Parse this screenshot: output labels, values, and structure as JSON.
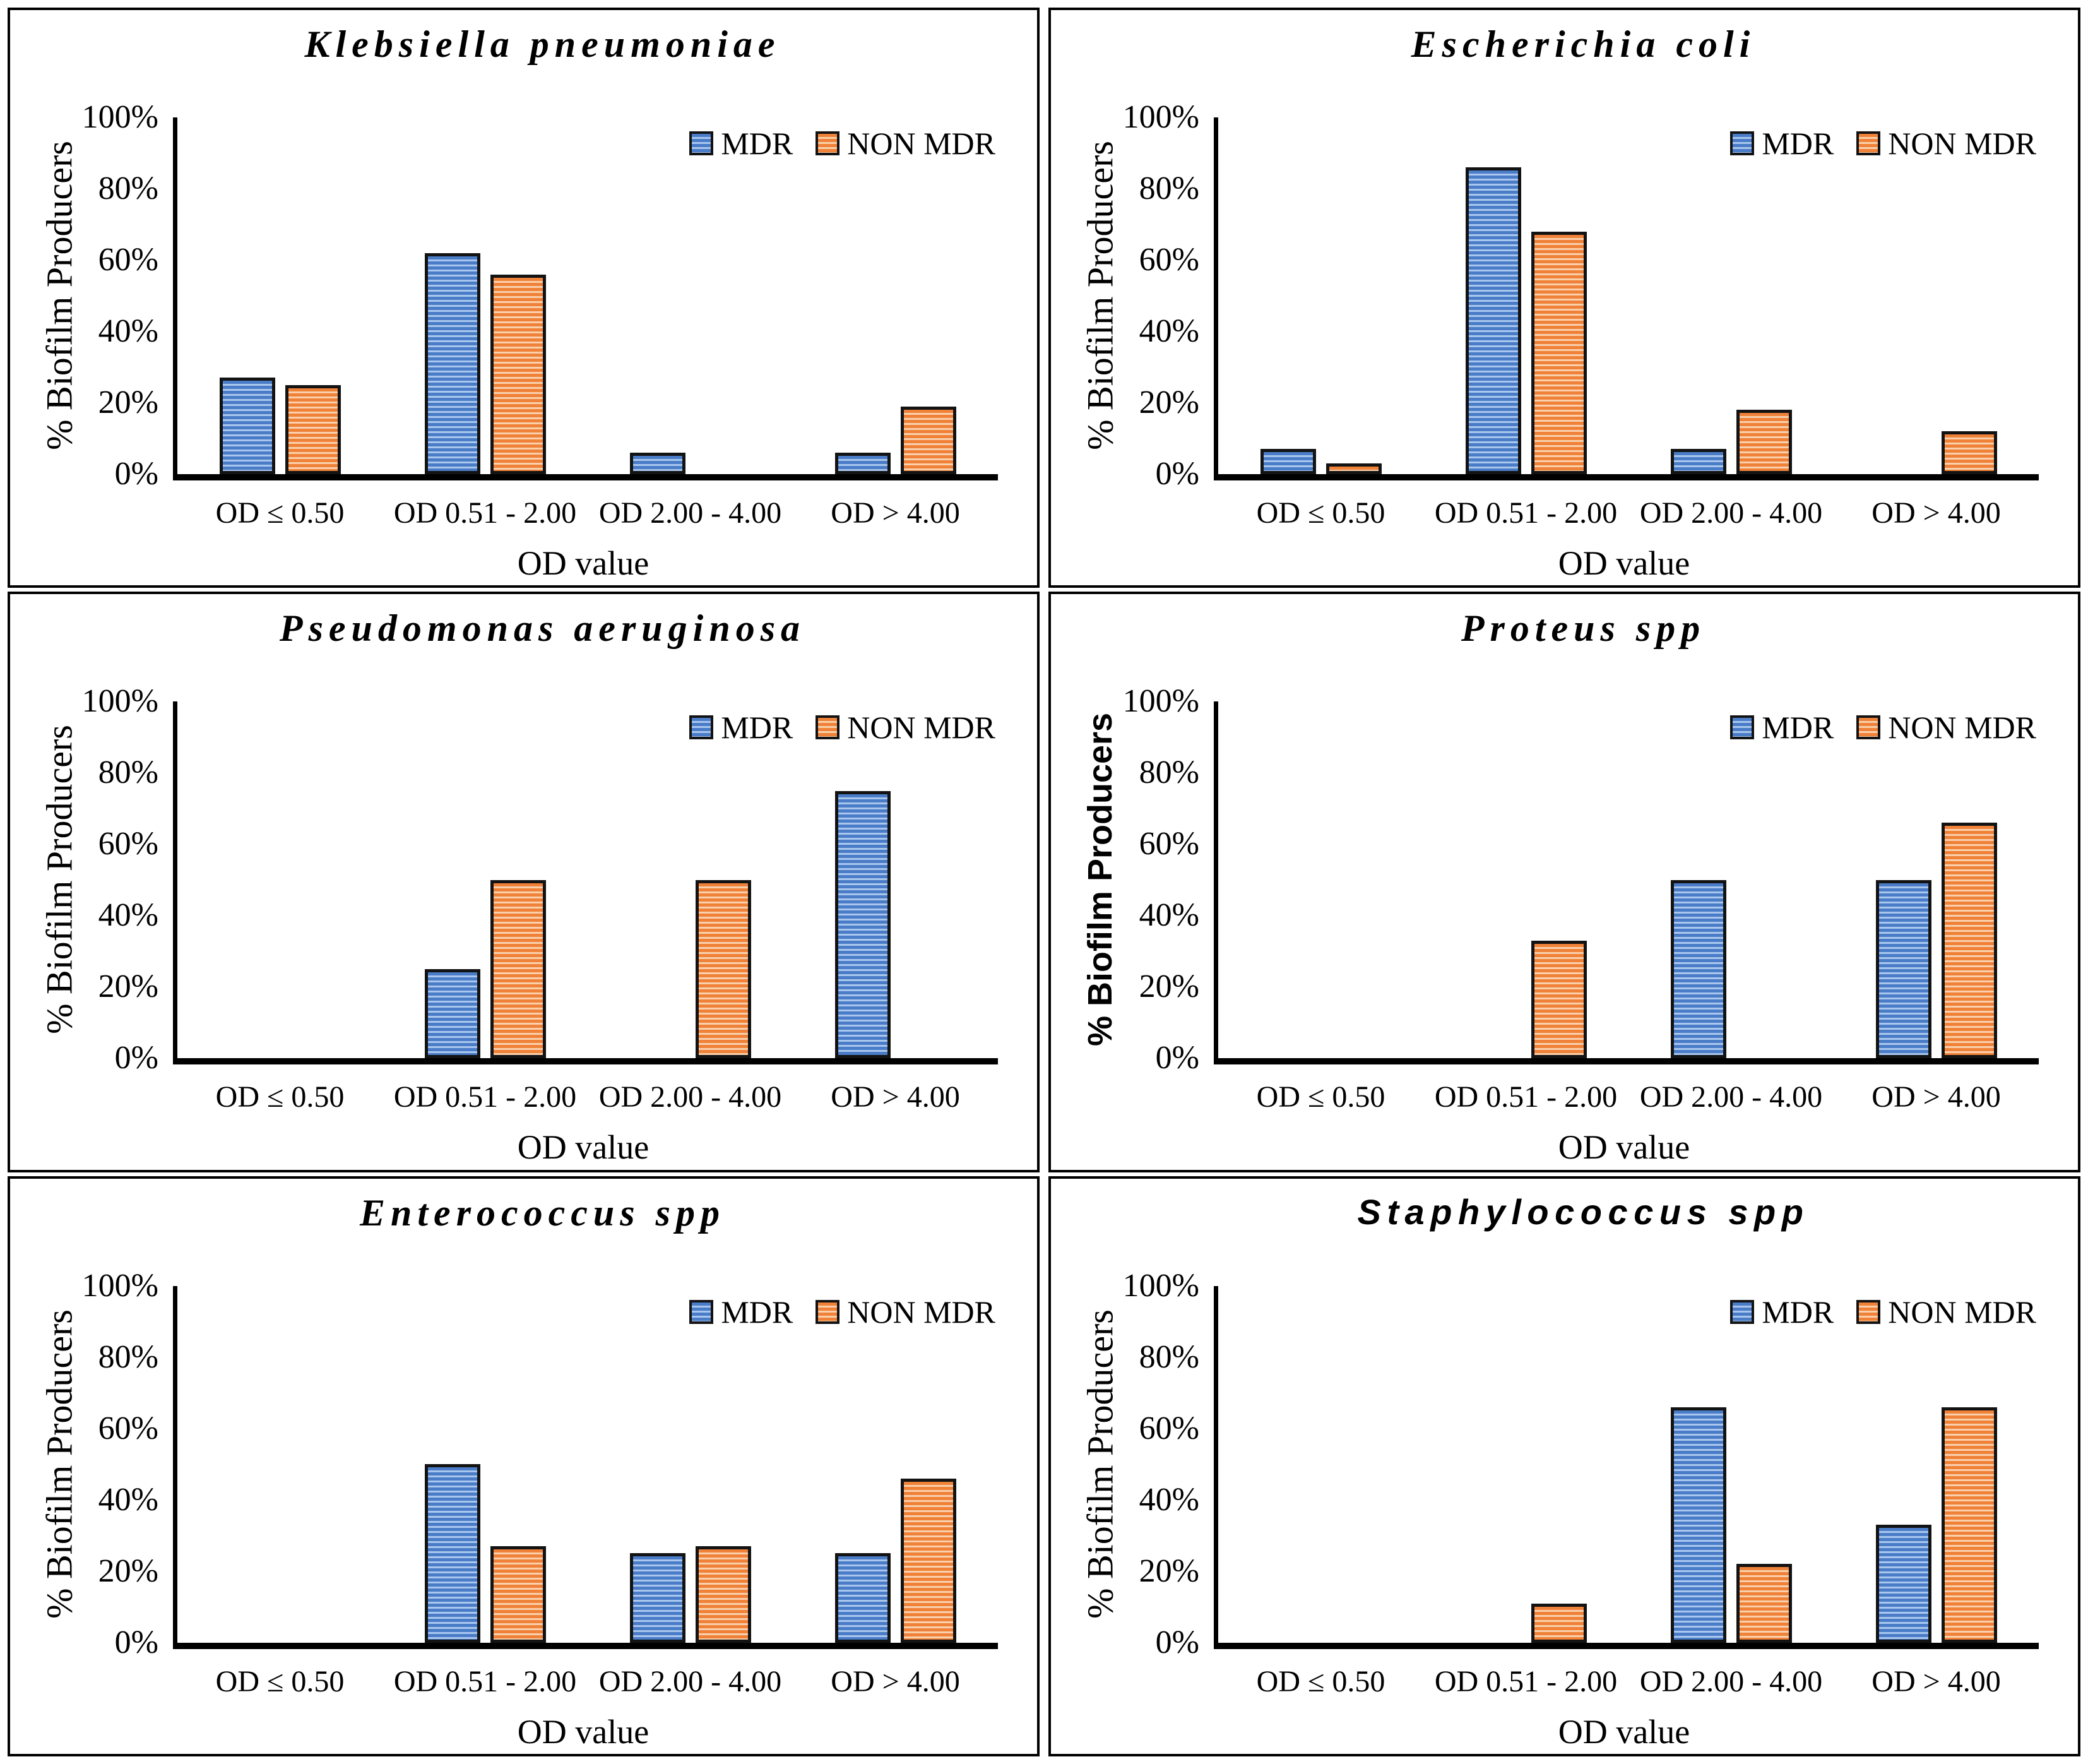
{
  "figure": {
    "colors": {
      "mdr": "#4A7CC7",
      "mdr_stripe": "#A9C7EE",
      "non_mdr": "#EF8238",
      "non_mdr_stripe": "#FACFAB",
      "bar_border": "#131313",
      "axis": "#000000"
    }
  },
  "chart_data": [
    {
      "type": "bar",
      "title": "Klebsiella pneumoniae",
      "title_style": "serif",
      "xlabel": "OD value",
      "ylabel": "% Biofilm Producers",
      "ylabel_style": "serif",
      "ylim": [
        0,
        100
      ],
      "y_ticks": [
        "0%",
        "20%",
        "40%",
        "60%",
        "80%",
        "100%"
      ],
      "grid": false,
      "legend_position": "top-right",
      "categories": [
        "OD ≤ 0.50",
        "OD 0.51 - 2.00",
        "OD 2.00 - 4.00",
        "OD > 4.00"
      ],
      "series": [
        {
          "name": "MDR",
          "values": [
            27,
            62,
            6,
            6
          ]
        },
        {
          "name": "NON MDR",
          "values": [
            25,
            56,
            0,
            19
          ]
        }
      ]
    },
    {
      "type": "bar",
      "title": "Escherichia coli",
      "title_style": "serif",
      "xlabel": "OD value",
      "ylabel": "% Biofilm Producers",
      "ylabel_style": "serif",
      "ylim": [
        0,
        100
      ],
      "y_ticks": [
        "0%",
        "20%",
        "40%",
        "60%",
        "80%",
        "100%"
      ],
      "grid": false,
      "legend_position": "top-right",
      "categories": [
        "OD ≤ 0.50",
        "OD 0.51 - 2.00",
        "OD 2.00 - 4.00",
        "OD > 4.00"
      ],
      "series": [
        {
          "name": "MDR",
          "values": [
            7,
            86,
            7,
            0
          ]
        },
        {
          "name": "NON MDR",
          "values": [
            3,
            68,
            18,
            12
          ]
        }
      ]
    },
    {
      "type": "bar",
      "title": "Pseudomonas aeruginosa",
      "title_style": "serif",
      "xlabel": "OD value",
      "ylabel": "% Biofilm Producers",
      "ylabel_style": "serif",
      "ylim": [
        0,
        100
      ],
      "y_ticks": [
        "0%",
        "20%",
        "40%",
        "60%",
        "80%",
        "100%"
      ],
      "grid": false,
      "legend_position": "top-right",
      "categories": [
        "OD ≤ 0.50",
        "OD 0.51 - 2.00",
        "OD 2.00 - 4.00",
        "OD > 4.00"
      ],
      "series": [
        {
          "name": "MDR",
          "values": [
            0,
            25,
            0,
            75
          ]
        },
        {
          "name": "NON MDR",
          "values": [
            0,
            50,
            50,
            0
          ]
        }
      ]
    },
    {
      "type": "bar",
      "title": "Proteus spp",
      "title_style": "serif",
      "xlabel": "OD value",
      "ylabel": "% Biofilm Producers",
      "ylabel_style": "sans",
      "ylim": [
        0,
        100
      ],
      "y_ticks": [
        "0%",
        "20%",
        "40%",
        "60%",
        "80%",
        "100%"
      ],
      "grid": false,
      "legend_position": "top-right",
      "categories": [
        "OD ≤ 0.50",
        "OD 0.51 - 2.00",
        "OD 2.00 - 4.00",
        "OD > 4.00"
      ],
      "series": [
        {
          "name": "MDR",
          "values": [
            0,
            0,
            50,
            50
          ]
        },
        {
          "name": "NON MDR",
          "values": [
            0,
            33,
            0,
            66
          ]
        }
      ]
    },
    {
      "type": "bar",
      "title": "Enterococcus spp",
      "title_style": "serif",
      "xlabel": "OD value",
      "ylabel": "% Biofilm Producers",
      "ylabel_style": "serif",
      "ylim": [
        0,
        100
      ],
      "y_ticks": [
        "0%",
        "20%",
        "40%",
        "60%",
        "80%",
        "100%"
      ],
      "grid": false,
      "legend_position": "top-right",
      "categories": [
        "OD ≤ 0.50",
        "OD 0.51 - 2.00",
        "OD 2.00 - 4.00",
        "OD > 4.00"
      ],
      "series": [
        {
          "name": "MDR",
          "values": [
            0,
            50,
            25,
            25
          ]
        },
        {
          "name": "NON MDR",
          "values": [
            0,
            27,
            27,
            46
          ]
        }
      ]
    },
    {
      "type": "bar",
      "title": "Staphylococcus spp",
      "title_style": "sans",
      "xlabel": "OD value",
      "ylabel": "% Biofilm Producers",
      "ylabel_style": "serif",
      "ylim": [
        0,
        100
      ],
      "y_ticks": [
        "0%",
        "20%",
        "40%",
        "60%",
        "80%",
        "100%"
      ],
      "grid": false,
      "legend_position": "top-right",
      "categories": [
        "OD ≤ 0.50",
        "OD 0.51 - 2.00",
        "OD 2.00 - 4.00",
        "OD > 4.00"
      ],
      "series": [
        {
          "name": "MDR",
          "values": [
            0,
            0,
            66,
            33
          ]
        },
        {
          "name": "NON MDR",
          "values": [
            0,
            11,
            22,
            66
          ]
        }
      ]
    }
  ]
}
